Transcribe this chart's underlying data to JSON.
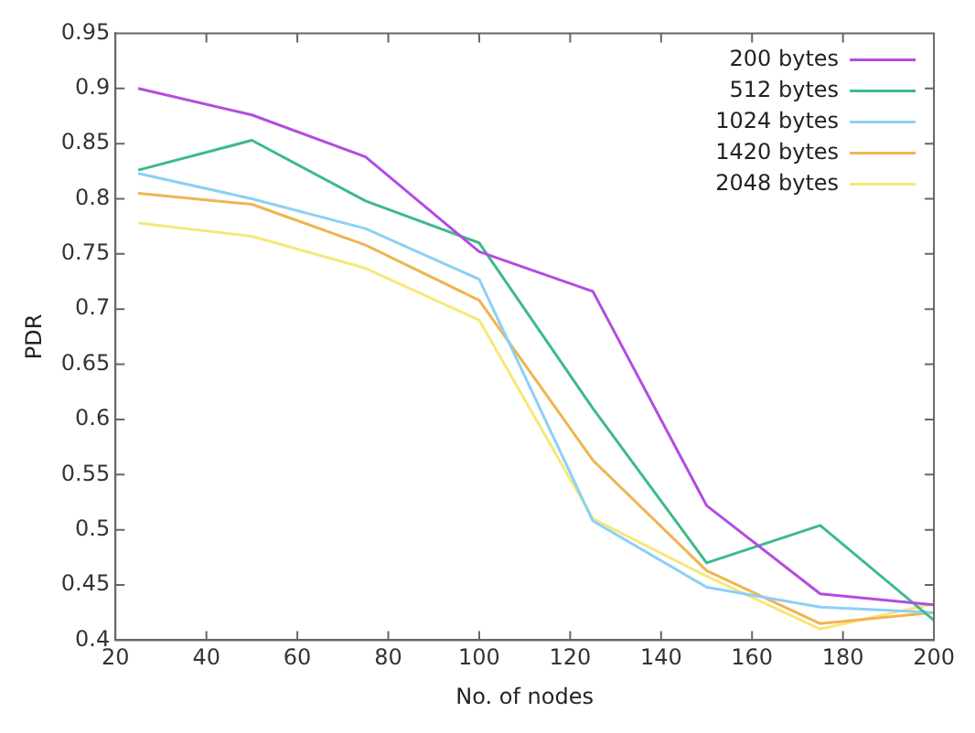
{
  "chart_data": {
    "type": "line",
    "xlabel": "No. of nodes",
    "ylabel": "PDR",
    "x": [
      25,
      50,
      75,
      100,
      125,
      150,
      175,
      200
    ],
    "series": [
      {
        "name": "200 bytes",
        "color": "#b44be1",
        "values": [
          0.9,
          0.876,
          0.838,
          0.752,
          0.716,
          0.522,
          0.442,
          0.432
        ]
      },
      {
        "name": "512 bytes",
        "color": "#3dba8c",
        "values": [
          0.826,
          0.853,
          0.798,
          0.76,
          0.61,
          0.47,
          0.504,
          0.418
        ]
      },
      {
        "name": "1024 bytes",
        "color": "#8cd0f5",
        "values": [
          0.823,
          0.8,
          0.773,
          0.727,
          0.508,
          0.448,
          0.43,
          0.425
        ]
      },
      {
        "name": "1420 bytes",
        "color": "#f0b452",
        "values": [
          0.805,
          0.795,
          0.758,
          0.708,
          0.563,
          0.463,
          0.415,
          0.425
        ]
      },
      {
        "name": "2048 bytes",
        "color": "#f7e77a",
        "values": [
          0.778,
          0.766,
          0.737,
          0.69,
          0.51,
          0.458,
          0.41,
          0.433
        ]
      }
    ],
    "xlim": [
      20,
      200
    ],
    "xticks": [
      20,
      40,
      60,
      80,
      100,
      120,
      140,
      160,
      180,
      200
    ],
    "ylim": [
      0.4,
      0.95
    ],
    "yticks": [
      0.4,
      0.45,
      0.5,
      0.55,
      0.6,
      0.65,
      0.7,
      0.75,
      0.8,
      0.85,
      0.9,
      0.95
    ],
    "grid": false,
    "legend": "top right",
    "marker": "none",
    "line_style": "solid"
  }
}
